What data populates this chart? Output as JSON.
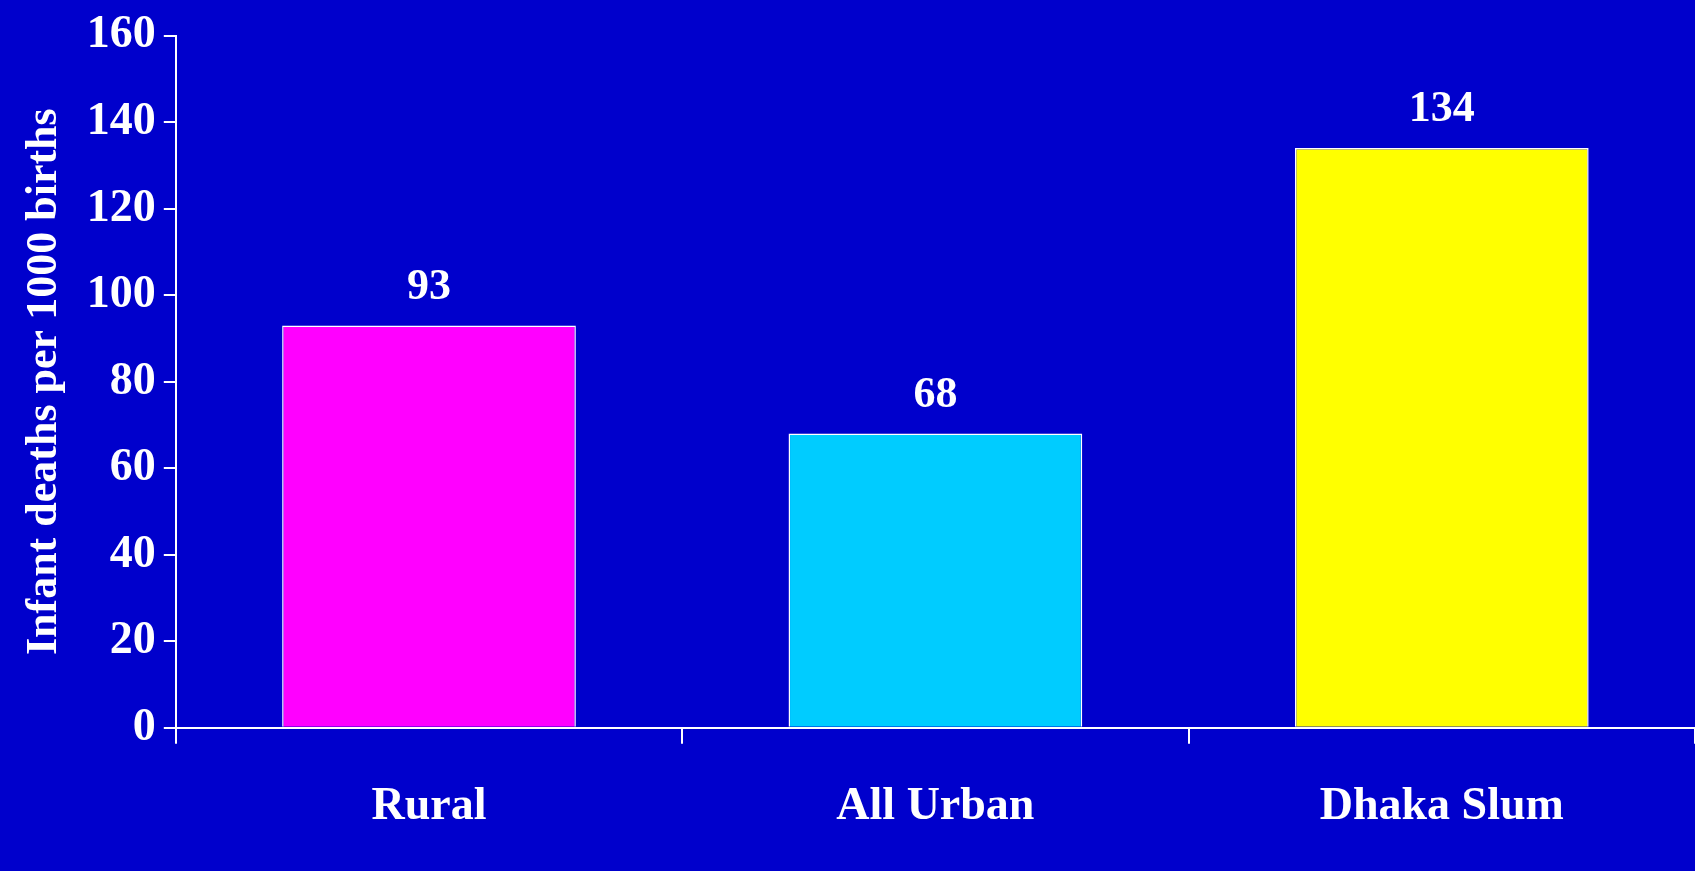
{
  "chart_data": {
    "type": "bar",
    "ylabel": "Infant deaths per 1000 births",
    "categories": [
      "Rural",
      "All Urban",
      "Dhaka Slum"
    ],
    "values": [
      93,
      68,
      134
    ],
    "colors": [
      "#ff00ff",
      "#00ccff",
      "#ffff00"
    ],
    "ylim": [
      0,
      160
    ],
    "yticks": [
      0,
      20,
      40,
      60,
      80,
      100,
      120,
      140,
      160
    ],
    "grid": false,
    "legend": false,
    "data_labels": true
  }
}
